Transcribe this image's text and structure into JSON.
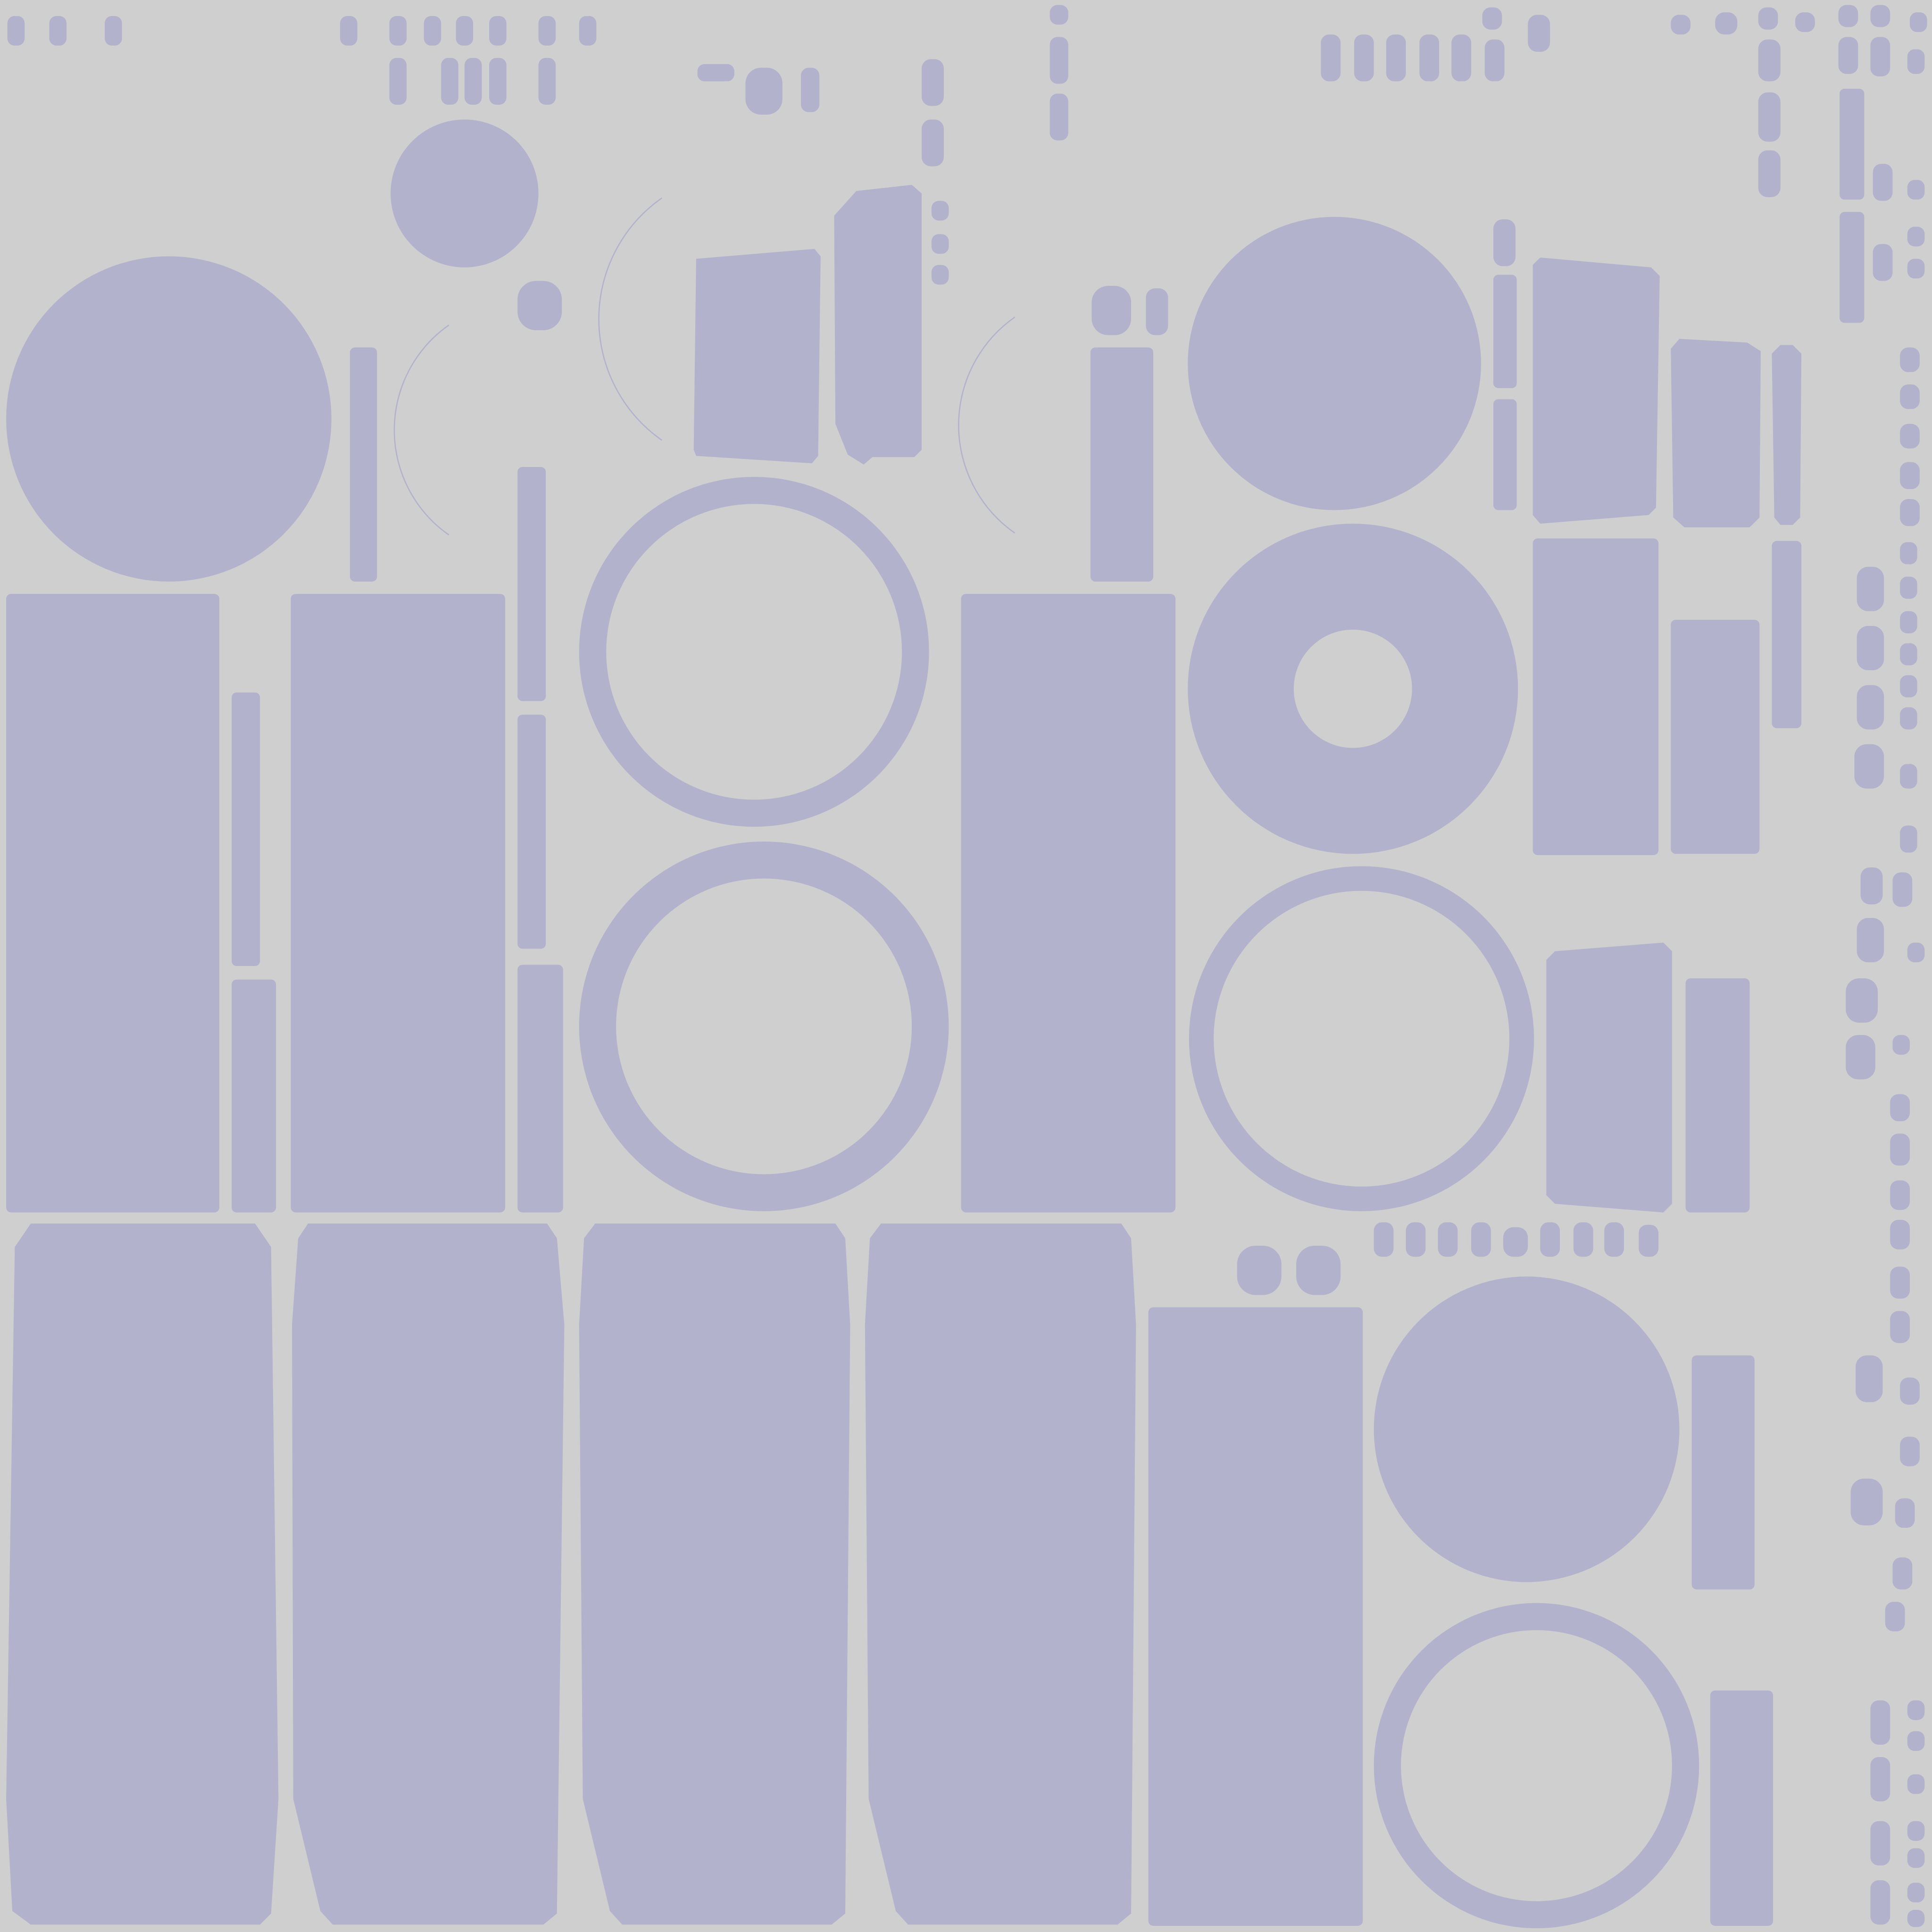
{
  "atlas": {
    "background_color": "#cfcfcf",
    "shell_color": "#b2b2cd"
  }
}
